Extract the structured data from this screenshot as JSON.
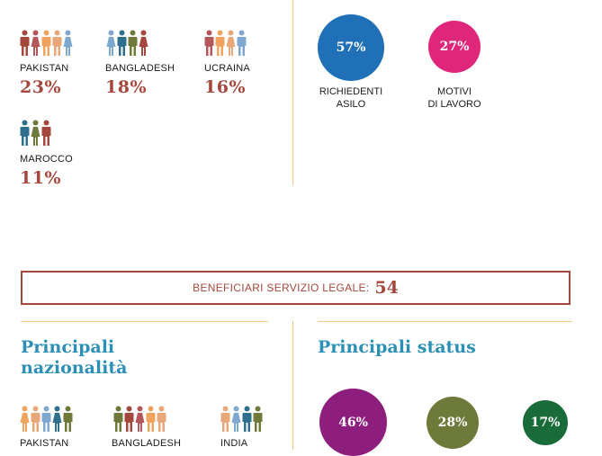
{
  "colors": {
    "accent_red": "#a5473c",
    "title_blue": "#2c8fb5",
    "divider": "#f4c987",
    "person_palette": [
      "#a5473c",
      "#7fa8d1",
      "#b5565a",
      "#2e6f8e",
      "#f0a35c",
      "#6e7a3a",
      "#e8a778"
    ]
  },
  "top_nationalities": [
    {
      "country": "PAKISTAN",
      "percent": "23%",
      "figures": 5
    },
    {
      "country": "BANGLADESH",
      "percent": "18%",
      "figures": 4
    },
    {
      "country": "UCRAINA",
      "percent": "16%",
      "figures": 4
    },
    {
      "country": "MAROCCO",
      "percent": "11%",
      "figures": 3
    }
  ],
  "top_status": [
    {
      "value": "57%",
      "label": "RICHIEDENTI\nASILO",
      "color": "#2070b8",
      "fraction": 0.57
    },
    {
      "value": "27%",
      "label": "MOTIVI\nDI LAVORO",
      "color": "#e0267a",
      "fraction": 0.27
    }
  ],
  "legal": {
    "label": "BENEFICIARI SERVIZIO LEGALE:",
    "value": "54"
  },
  "bottom": {
    "nat_title": "Principali\nnazionalità",
    "status_title": "Principali status",
    "nationalities": [
      {
        "country": "PAKISTAN",
        "figures": 5
      },
      {
        "country": "BANGLADESH",
        "figures": 5
      },
      {
        "country": "INDIA",
        "figures": 4
      }
    ],
    "status": [
      {
        "value": "46%",
        "color": "#8e1e7e",
        "fraction": 0.46
      },
      {
        "value": "28%",
        "color": "#6e7a3a",
        "fraction": 0.28
      },
      {
        "value": "17%",
        "color": "#1a6b3a",
        "fraction": 0.17
      }
    ]
  }
}
